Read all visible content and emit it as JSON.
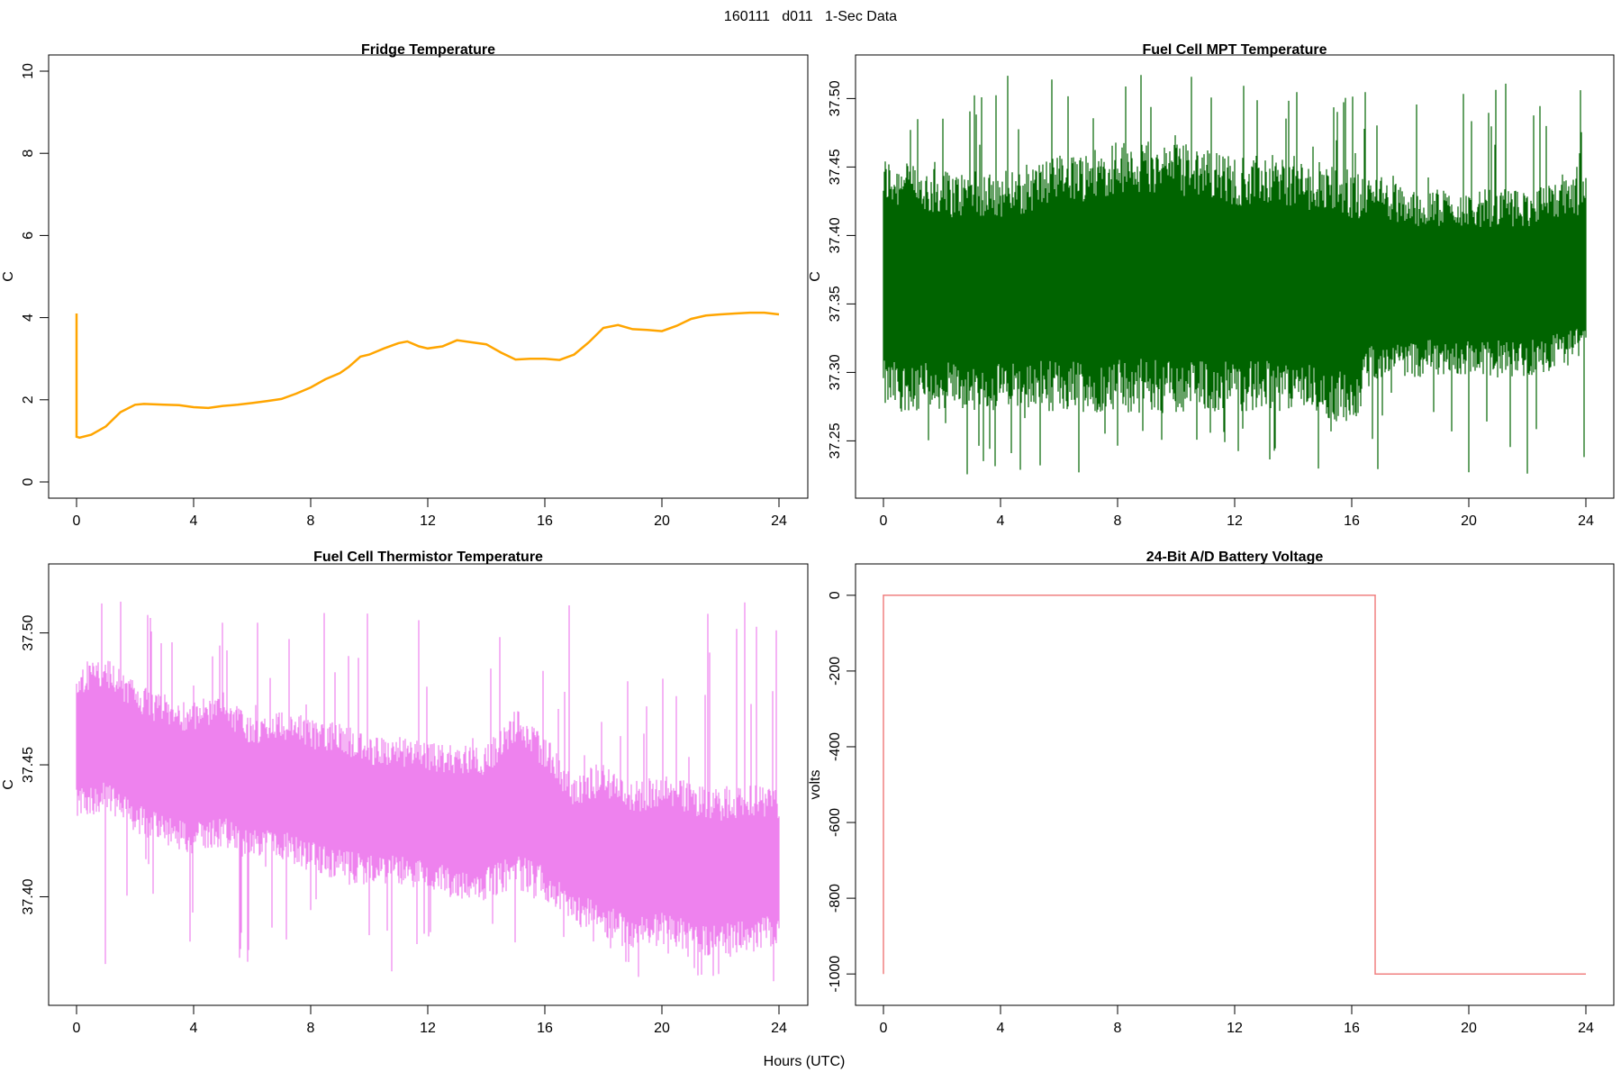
{
  "figure": {
    "title": "160111   d011   1-Sec Data",
    "xlabel": "Hours (UTC)"
  },
  "chart_data": [
    {
      "type": "line",
      "title": "Fridge Temperature",
      "xlabel": "",
      "ylabel": "C",
      "xlim": [
        0,
        24
      ],
      "ylim": [
        0,
        10
      ],
      "xticks": [
        0,
        4,
        8,
        12,
        16,
        20,
        24
      ],
      "yticks": [
        0,
        2,
        4,
        6,
        8,
        10
      ],
      "color": "#FFA500",
      "grid": false,
      "series": [
        {
          "x": [
            0,
            0,
            0.1,
            0.5,
            1.0,
            1.5,
            2.0,
            2.3,
            3.0,
            3.5,
            4.0,
            4.5,
            5.0,
            5.5,
            6.0,
            6.5,
            7.0,
            7.5,
            8.0,
            8.5,
            9.0,
            9.3,
            9.7,
            10.0,
            10.5,
            11.0,
            11.3,
            11.7,
            12.0,
            12.5,
            13.0,
            13.5,
            14.0,
            14.5,
            15.0,
            15.5,
            16.0,
            16.5,
            17.0,
            17.5,
            18.0,
            18.5,
            19.0,
            19.5,
            20.0,
            20.5,
            21.0,
            21.5,
            22.0,
            22.5,
            23.0,
            23.5,
            24.0
          ],
          "y": [
            4.1,
            1.1,
            1.08,
            1.15,
            1.35,
            1.7,
            1.88,
            1.9,
            1.88,
            1.87,
            1.82,
            1.8,
            1.85,
            1.88,
            1.92,
            1.97,
            2.02,
            2.15,
            2.3,
            2.5,
            2.65,
            2.8,
            3.05,
            3.1,
            3.25,
            3.38,
            3.42,
            3.3,
            3.25,
            3.3,
            3.45,
            3.4,
            3.35,
            3.15,
            2.98,
            3.0,
            3.0,
            2.97,
            3.1,
            3.4,
            3.75,
            3.82,
            3.72,
            3.7,
            3.67,
            3.8,
            3.97,
            4.05,
            4.08,
            4.1,
            4.12,
            4.12,
            4.08
          ]
        }
      ]
    },
    {
      "type": "line",
      "title": "Fuel Cell MPT Temperature",
      "xlabel": "",
      "ylabel": "C",
      "xlim": [
        0,
        24
      ],
      "ylim": [
        37.22,
        37.52
      ],
      "xticks": [
        0,
        4,
        8,
        12,
        16,
        20,
        24
      ],
      "yticks": [
        "37.25",
        "37.30",
        "37.35",
        "37.40",
        "37.45",
        "37.50"
      ],
      "color": "#006400",
      "grid": false,
      "series": [
        {
          "x": [
            0,
            2,
            4,
            6,
            8,
            10,
            12,
            14,
            16,
            16.8,
            18,
            20,
            22,
            24
          ],
          "y_mean": [
            37.36,
            37.36,
            37.36,
            37.36,
            37.365,
            37.365,
            37.36,
            37.36,
            37.355,
            37.365,
            37.365,
            37.365,
            37.365,
            37.37
          ],
          "y_low": [
            37.29,
            37.29,
            37.29,
            37.29,
            37.29,
            37.29,
            37.29,
            37.29,
            37.28,
            37.31,
            37.31,
            37.31,
            37.31,
            37.32
          ],
          "y_high": [
            37.44,
            37.43,
            37.43,
            37.44,
            37.45,
            37.45,
            37.44,
            37.44,
            37.43,
            37.43,
            37.42,
            37.42,
            37.42,
            37.43
          ],
          "y_min": 37.225,
          "y_max": 37.52
        }
      ]
    },
    {
      "type": "line",
      "title": "Fuel Cell Thermistor Temperature",
      "xlabel": "",
      "ylabel": "C",
      "xlim": [
        0,
        24
      ],
      "ylim": [
        37.365,
        37.52
      ],
      "xticks": [
        0,
        4,
        8,
        12,
        16,
        20,
        24
      ],
      "yticks": [
        "37.40",
        "37.45",
        "37.50"
      ],
      "color": "#EE82EE",
      "grid": false,
      "series": [
        {
          "x": [
            0,
            1,
            2,
            3,
            4,
            5,
            6,
            7,
            8,
            9,
            10,
            11,
            12,
            13,
            14,
            15,
            16,
            17,
            18,
            19,
            20,
            21,
            22,
            23,
            24
          ],
          "y_mean": [
            37.458,
            37.46,
            37.452,
            37.447,
            37.445,
            37.447,
            37.44,
            37.442,
            37.438,
            37.435,
            37.432,
            37.432,
            37.43,
            37.428,
            37.428,
            37.435,
            37.43,
            37.417,
            37.418,
            37.41,
            37.413,
            37.41,
            37.408,
            37.41,
            37.41
          ],
          "y_low": [
            37.435,
            37.438,
            37.43,
            37.425,
            37.422,
            37.425,
            37.42,
            37.42,
            37.415,
            37.412,
            37.41,
            37.41,
            37.408,
            37.405,
            37.405,
            37.41,
            37.405,
            37.395,
            37.392,
            37.385,
            37.388,
            37.385,
            37.383,
            37.385,
            37.388
          ],
          "y_high": [
            37.482,
            37.485,
            37.476,
            37.47,
            37.468,
            37.472,
            37.462,
            37.465,
            37.462,
            37.46,
            37.455,
            37.455,
            37.453,
            37.452,
            37.452,
            37.465,
            37.455,
            37.44,
            37.445,
            37.438,
            37.44,
            37.437,
            37.435,
            37.437,
            37.435
          ],
          "y_min": 37.368,
          "y_max": 37.515
        }
      ]
    },
    {
      "type": "line",
      "title": "24-Bit A/D Battery Voltage",
      "xlabel": "",
      "ylabel": "volts",
      "xlim": [
        0,
        24
      ],
      "ylim": [
        -1040,
        40
      ],
      "xticks": [
        0,
        4,
        8,
        12,
        16,
        20,
        24
      ],
      "yticks": [
        0,
        -200,
        -400,
        -600,
        -800,
        -1000
      ],
      "color": "#F08080",
      "grid": false,
      "series": [
        {
          "x": [
            0,
            0,
            16.8,
            16.8,
            24
          ],
          "y": [
            -1000,
            0,
            0,
            -1000,
            -1000
          ]
        }
      ]
    }
  ]
}
